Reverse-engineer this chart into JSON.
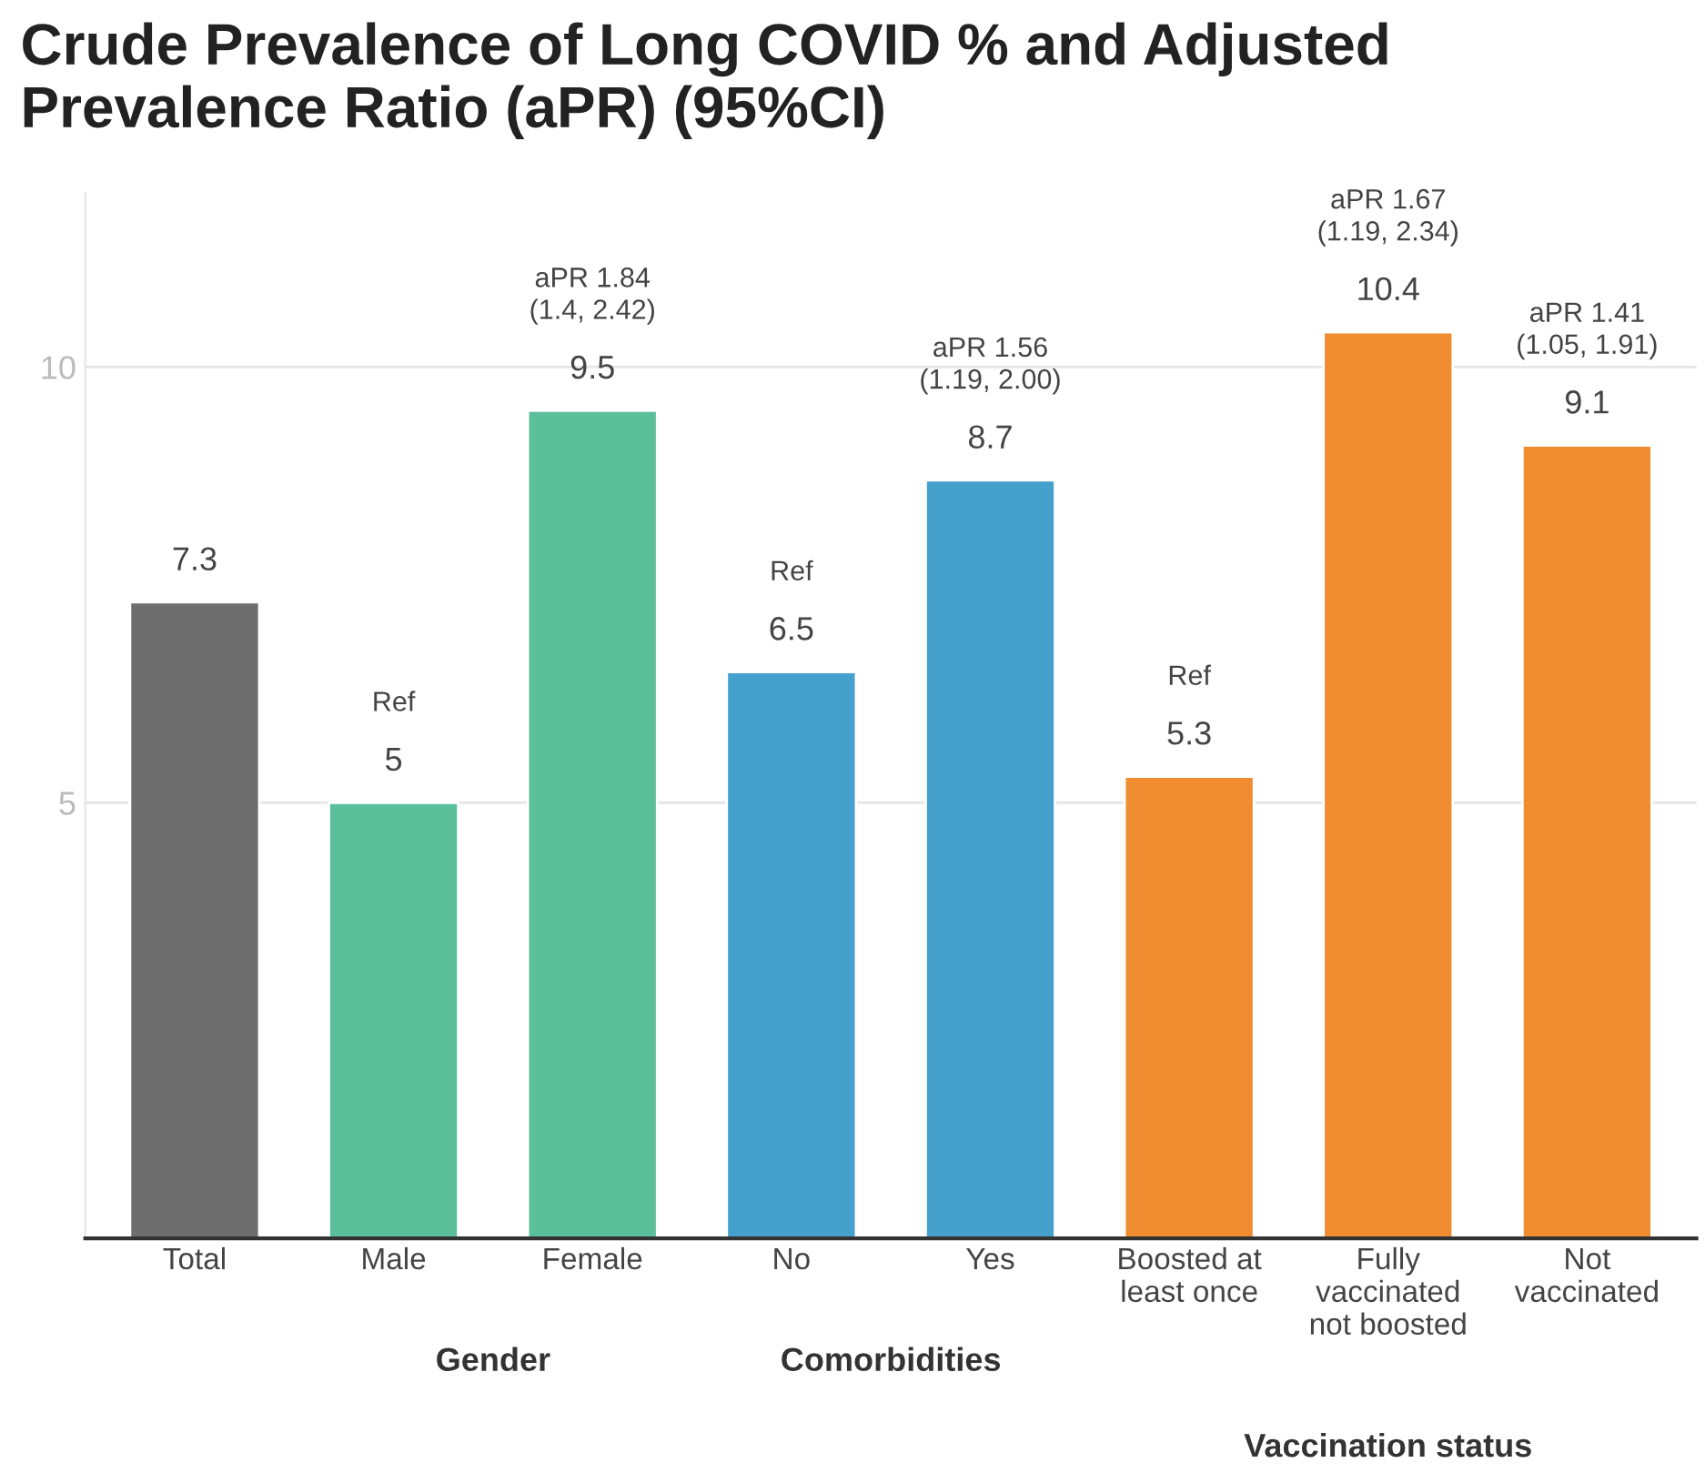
{
  "chart_data": {
    "type": "bar",
    "title": "Crude Prevalence of Long COVID % and Adjusted Prevalence Ratio (aPR) (95%CI)",
    "categories": [
      "Total",
      "Male",
      "Female",
      "No",
      "Yes",
      "Boosted at\nleast once",
      "Fully\nvaccinated\nnot boosted",
      "Not\nvaccinated"
    ],
    "values": [
      7.3,
      5,
      9.5,
      6.5,
      8.7,
      5.3,
      10.4,
      9.1
    ],
    "colors": [
      "#6e6e6e",
      "#5bbf9c",
      "#5bbf9c",
      "#45a0cc",
      "#45a0cc",
      "#f08c30",
      "#f08c30",
      "#f08c30"
    ],
    "data_labels": true,
    "ylim": [
      0,
      12
    ],
    "yticks": [
      5,
      10
    ],
    "grid": "y",
    "annotations": [
      "Ref",
      "aPR 1.84\n(1.4, 2.42)",
      "Ref",
      "aPR 1.56\n(1.19, 2.00)",
      "Ref",
      "aPR 1.67\n(1.19, 2.34)",
      "aPR 1.41\n(1.05, 1.91)",
      "Gender",
      "Comorbidities",
      "Vaccination status"
    ]
  }
}
